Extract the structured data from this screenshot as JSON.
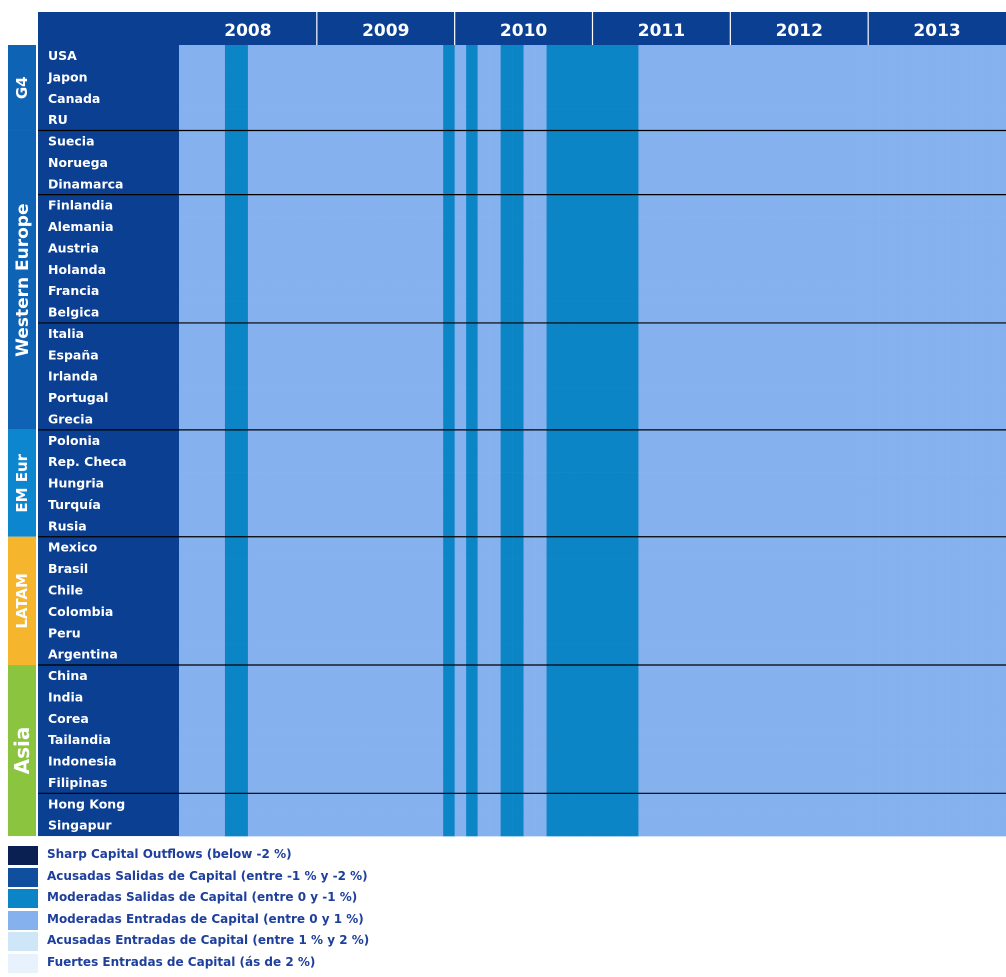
{
  "palette": [
    "#0a2052",
    "#0f4f9d",
    "#0b85c6",
    "#86b1ef",
    "#cfe6f8",
    "#e8f2fd"
  ],
  "group_colors": [
    "#0e63b5",
    "#0e63b5",
    "#0c86cf",
    "#f5b62d",
    "#8bc43f"
  ],
  "chart_data": {
    "type": "heatmap",
    "x_years": [
      "2008",
      "2009",
      "2010",
      "2011",
      "2012",
      "2013"
    ],
    "cols_per_year": 12,
    "n_cols": 72,
    "groups": [
      {
        "name": "G4",
        "rows": [
          "USA",
          "Japon",
          "Canada",
          "RU"
        ]
      },
      {
        "name": "Western Europe",
        "rows": [
          "Suecia",
          "Noruega",
          "Dinamarca",
          "Finlandia",
          "Alemania",
          "Austria",
          "Holanda",
          "Francia",
          "Belgica",
          "Italia",
          "España",
          "Irlanda",
          "Portugal",
          "Grecia"
        ]
      },
      {
        "name": "EM Eur",
        "rows": [
          "Polonia",
          "Rep. Checa",
          "Hungria",
          "Turquía",
          "Rusia"
        ]
      },
      {
        "name": "LATAM",
        "rows": [
          "Mexico",
          "Brasil",
          "Chile",
          "Colombia",
          "Peru",
          "Argentina"
        ]
      },
      {
        "name": "Asia",
        "rows": [
          "China",
          "India",
          "Corea",
          "Tailandia",
          "Indonesia",
          "Filipinas",
          "Hong Kong",
          "Singapur"
        ]
      }
    ],
    "row_separators_after": [
      "RU",
      "Dinamarca",
      "Belgica",
      "Grecia",
      "Rusia",
      "Argentina",
      "Filipinas"
    ],
    "legend": [
      "Sharp Capital Outflows (below -2 %)",
      "Acusadas Salidas de Capital (entre  -1 % y -2 %)",
      "Moderadas Salidas de Capital  (entre 0 y -1 %)",
      "Moderadas Entradas  de Capital  (entre 0 y 1 %)",
      "Acusadas Entradas de Capital (entre 1 % y 2 %)",
      "Fuertes Entradas de Capital (ás de 2 %)"
    ],
    "cells": [
      "333322333333333333333332323322332222222233333333333333333333333333333333",
      "333322333333333333333332323322332222222233333333333333333333333333333333",
      "333322333333333333333332323322332222222233333333333333333333333333333333",
      "333322333333333333333332323322332222222233333333333333333333333333333333",
      "333322333333333333333332323322332222222233333333333333333333333333333333",
      "333322333333333333333332323322332222222233333333333333333333333333333333",
      "333322333333333333333332323322332222222233333333333333333333333333333333",
      "333322333333333333333332323322332222222233333333333333333333333333333333",
      "333322333333333333333332323322332222222233333333333333333333333333333333",
      "333322333333333333333332323322332222222233333333333333333333333333333333",
      "333322333333333333333332323322332222222233333333333333333333333333333333",
      "333322333333333333333332323322332222222233333333333333333333333333333333",
      "333322333333333333333332323322332222222233333333333333333333333333333333",
      "333322333333333333333332323322332222222233333333333333333333333333333333",
      "333322333333333333333332323322332222222233333333333333333333333333333333",
      "333322333333333333333332323322332222222233333333333333333333333333333333",
      "333322333333333333333332323322332222222233333333333333333333333333333333",
      "333322333333333333333332323322332222222233333333333333333333333333333333",
      "333322333333333333333332323322332222222233333333333333333333333333333333",
      "333322333333333333333332323322332222222233333333333333333333333333333333",
      "333322333333333333333332323322332222222233333333333333333333333333333333",
      "333322333333333333333332323322332222222233333333333333333333333333333333",
      "333322333333333333333332323322332222222233333333333333333333333333333333",
      "333322333333333333333332323322332222222233333333333333333333333333333333",
      "333322333333333333333332323322332222222233333333333333333333333333333333",
      "333322333333333333333332323322332222222233333333333333333333333333333333",
      "333322333333333333333332323322332222222233333333333333333333333333333333",
      "333322333333333333333332323322332222222233333333333333333333333333333333",
      "333322333333333333333332323322332222222233333333333333333333333333333333",
      "333322333333333333333332323322332222222233333333333333333333333333333333",
      "333322333333333333333332323322332222222233333333333333333333333333333333",
      "333322333333333333333332323322332222222233333333333333333333333333333333",
      "333322333333333333333332323322332222222233333333333333333333333333333333",
      "333322333333333333333332323322332222222233333333333333333333333333333333",
      "333322333333333333333332323322332222222233333333333333333333333333333333",
      "333322333333333333333332323322332222222233333333333333333333333333333333",
      "333322333333333333333332323322332222222233333333333333333333333333333333"
    ]
  }
}
